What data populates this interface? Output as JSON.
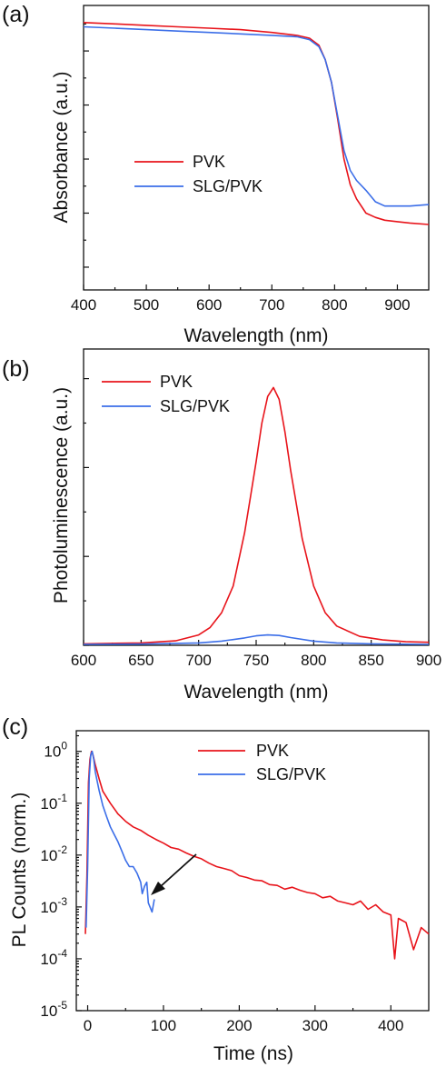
{
  "panels": [
    {
      "label": "(a)",
      "chart_data": {
        "type": "line",
        "xlabel": "Wavelength (nm)",
        "ylabel": "Absorbance (a.u.)",
        "xlim": [
          400,
          950
        ],
        "ylim": [
          0,
          1
        ],
        "xticks": [
          "400",
          "500",
          "600",
          "700",
          "800",
          "900"
        ],
        "y_tick_labels_shown": false,
        "legend": "center-left",
        "series": [
          {
            "name": "PVK",
            "color": "#e8141b",
            "x": [
              400,
              450,
              500,
              550,
              600,
              650,
              700,
              740,
              760,
              775,
              785,
              795,
              805,
              815,
              825,
              835,
              850,
              865,
              880,
              900,
              920,
              950
            ],
            "y": [
              0.94,
              0.935,
              0.93,
              0.925,
              0.92,
              0.915,
              0.905,
              0.895,
              0.885,
              0.86,
              0.81,
              0.73,
              0.6,
              0.46,
              0.37,
              0.32,
              0.27,
              0.255,
              0.245,
              0.24,
              0.235,
              0.23
            ]
          },
          {
            "name": "SLG/PVK",
            "color": "#3b6ee8",
            "x": [
              400,
              450,
              500,
              550,
              600,
              650,
              700,
              740,
              760,
              775,
              785,
              795,
              805,
              815,
              825,
              835,
              850,
              865,
              880,
              900,
              920,
              950
            ],
            "y": [
              0.925,
              0.92,
              0.915,
              0.91,
              0.905,
              0.9,
              0.895,
              0.89,
              0.88,
              0.855,
              0.81,
              0.73,
              0.61,
              0.49,
              0.42,
              0.385,
              0.35,
              0.31,
              0.295,
              0.295,
              0.295,
              0.3
            ]
          }
        ]
      }
    },
    {
      "label": "(b)",
      "chart_data": {
        "type": "line",
        "xlabel": "Wavelength (nm)",
        "ylabel": "Photoluminescence (a.u.)",
        "xlim": [
          600,
          900
        ],
        "ylim": [
          0,
          1
        ],
        "xticks": [
          "600",
          "650",
          "700",
          "750",
          "800",
          "850",
          "900"
        ],
        "y_tick_labels_shown": false,
        "legend": "top-left",
        "series": [
          {
            "name": "PVK",
            "color": "#e8141b",
            "x": [
              600,
              650,
              680,
              700,
              710,
              720,
              730,
              740,
              745,
              750,
              755,
              760,
              765,
              770,
              775,
              780,
              790,
              800,
              810,
              820,
              840,
              860,
              880,
              900
            ],
            "y": [
              0.005,
              0.008,
              0.015,
              0.035,
              0.06,
              0.11,
              0.2,
              0.38,
              0.5,
              0.62,
              0.75,
              0.84,
              0.87,
              0.83,
              0.72,
              0.59,
              0.36,
              0.2,
              0.11,
              0.065,
              0.03,
              0.018,
              0.012,
              0.01
            ]
          },
          {
            "name": "SLG/PVK",
            "color": "#3b6ee8",
            "x": [
              600,
              650,
              700,
              720,
              740,
              750,
              760,
              770,
              780,
              800,
              820,
              850,
              900
            ],
            "y": [
              0.003,
              0.004,
              0.008,
              0.014,
              0.025,
              0.032,
              0.035,
              0.033,
              0.026,
              0.014,
              0.008,
              0.005,
              0.003
            ]
          }
        ]
      }
    },
    {
      "label": "(c)",
      "chart_data": {
        "type": "line",
        "xlabel": "Time (ns)",
        "ylabel": "PL Counts (norm.)",
        "xlim": [
          -15,
          450
        ],
        "ylim": [
          1e-05,
          2.5
        ],
        "y_scale": "log",
        "xticks": [
          "0",
          "100",
          "200",
          "300",
          "400"
        ],
        "yticks": [
          {
            "base": "10",
            "exp": "0"
          },
          {
            "base": "10",
            "exp": "-1"
          },
          {
            "base": "10",
            "exp": "-2"
          },
          {
            "base": "10",
            "exp": "-3"
          },
          {
            "base": "10",
            "exp": "-4"
          },
          {
            "base": "10",
            "exp": "-5"
          }
        ],
        "legend": "top-right",
        "annotation": "arrow",
        "series": [
          {
            "name": "PVK",
            "color": "#e8141b",
            "x": [
              -3,
              -1,
              1,
              3,
              5,
              7,
              10,
              15,
              20,
              30,
              40,
              50,
              60,
              70,
              80,
              90,
              100,
              110,
              120,
              130,
              140,
              150,
              160,
              170,
              180,
              190,
              200,
              210,
              220,
              230,
              240,
              250,
              260,
              270,
              280,
              290,
              300,
              310,
              320,
              330,
              340,
              350,
              360,
              370,
              380,
              390,
              400,
              405,
              410,
              420,
              430,
              440,
              450
            ],
            "y": [
              0.0003,
              0.004,
              0.25,
              0.7,
              1.0,
              0.85,
              0.55,
              0.3,
              0.17,
              0.1,
              0.062,
              0.045,
              0.035,
              0.03,
              0.024,
              0.02,
              0.017,
              0.014,
              0.013,
              0.011,
              0.0095,
              0.0085,
              0.007,
              0.006,
              0.0055,
              0.005,
              0.004,
              0.0037,
              0.0033,
              0.0032,
              0.0027,
              0.0026,
              0.0022,
              0.0024,
              0.0021,
              0.0019,
              0.0018,
              0.0015,
              0.0016,
              0.0013,
              0.0012,
              0.0011,
              0.0013,
              0.0009,
              0.0011,
              0.0008,
              0.0007,
              0.0001,
              0.0006,
              0.0005,
              0.00015,
              0.0004,
              0.0003
            ]
          },
          {
            "name": "SLG/PVK",
            "color": "#3b6ee8",
            "x": [
              -2,
              0,
              2,
              4,
              6,
              8,
              10,
              15,
              20,
              25,
              30,
              35,
              40,
              45,
              50,
              55,
              60,
              65,
              70,
              72,
              75,
              78,
              80,
              85,
              88
            ],
            "y": [
              0.0004,
              0.006,
              0.3,
              0.85,
              1.0,
              0.7,
              0.4,
              0.18,
              0.09,
              0.055,
              0.035,
              0.025,
              0.018,
              0.012,
              0.008,
              0.006,
              0.006,
              0.0045,
              0.003,
              0.0018,
              0.0025,
              0.003,
              0.0012,
              0.0008,
              0.0014
            ]
          }
        ]
      }
    }
  ]
}
